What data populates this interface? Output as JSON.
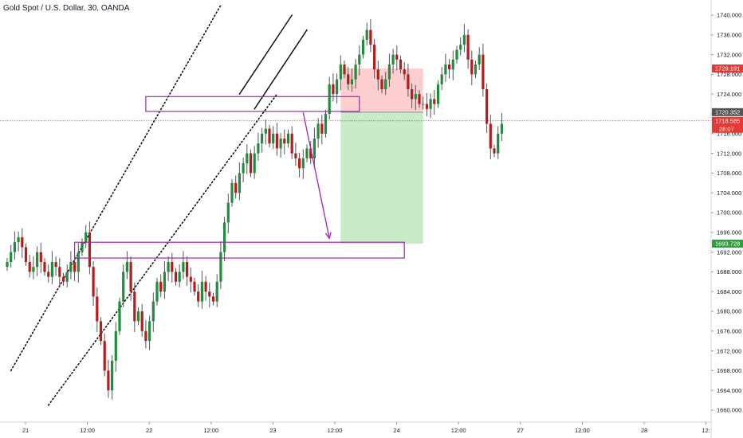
{
  "title": "Gold Spot / U.S. Dollar, 30, OANDA",
  "colors": {
    "up": "#26a69a",
    "down": "#ef5350",
    "bull_body": "#1e8e3e",
    "bear_body": "#b71c1c",
    "wick": "#555555",
    "purple": "#9c27b0",
    "target_fill": "#c8ebc8",
    "stop_fill": "#fdcfcf",
    "price_line": "#e53935",
    "axis_border": "#d1d4dc"
  },
  "price_tags": {
    "stop": "1729.191",
    "entry": "1720.352",
    "current": "1718.585",
    "countdown": "28:07",
    "target": "1693.728"
  },
  "chart_data": {
    "type": "candlestick",
    "symbol": "Gold Spot / U.S. Dollar",
    "timeframe": "30",
    "source": "OANDA",
    "x_ticks": [
      "21",
      "12:00",
      "22",
      "12:00",
      "23",
      "12:00",
      "24",
      "12:00",
      "27",
      "12:00",
      "28",
      "12:"
    ],
    "y_ticks": [
      "1740.000",
      "1736.000",
      "1732.000",
      "1728.000",
      "1724.000",
      "1720.000",
      "1716.000",
      "1712.000",
      "1708.000",
      "1704.000",
      "1700.000",
      "1696.000",
      "1692.000",
      "1688.000",
      "1684.000",
      "1680.000",
      "1676.000",
      "1672.000",
      "1668.000",
      "1664.000",
      "1660.000"
    ],
    "ylim": [
      1658,
      1742
    ],
    "current_price": 1718.585,
    "candles_close": [
      1690,
      1692,
      1694,
      1695,
      1693,
      1690,
      1688,
      1689,
      1692,
      1690,
      1688,
      1687,
      1690,
      1689,
      1687,
      1686,
      1688,
      1690,
      1688,
      1692,
      1694,
      1696,
      1689,
      1683,
      1678,
      1674,
      1668,
      1664,
      1670,
      1676,
      1682,
      1688,
      1690,
      1684,
      1678,
      1680,
      1676,
      1674,
      1678,
      1682,
      1686,
      1684,
      1688,
      1690,
      1688,
      1686,
      1688,
      1690,
      1687,
      1686,
      1684,
      1682,
      1686,
      1684,
      1683,
      1682,
      1686,
      1692,
      1698,
      1702,
      1706,
      1704,
      1708,
      1710,
      1712,
      1708,
      1712,
      1714,
      1716,
      1717,
      1714,
      1716,
      1713,
      1715,
      1714,
      1716,
      1712,
      1711,
      1709,
      1711,
      1713,
      1711,
      1715,
      1718,
      1716,
      1720,
      1726,
      1724,
      1727,
      1730,
      1728,
      1726,
      1727,
      1730,
      1732,
      1735,
      1737,
      1734,
      1729,
      1727,
      1725,
      1727,
      1730,
      1732,
      1731,
      1729,
      1728,
      1725,
      1723,
      1724,
      1722,
      1722,
      1721,
      1723,
      1722,
      1726,
      1728,
      1730,
      1729,
      1731,
      1733,
      1734,
      1736,
      1731,
      1728,
      1730,
      1732,
      1725,
      1718,
      1713,
      1712,
      1716,
      1718
    ],
    "channels": [
      {
        "from": [
          1,
          1668
        ],
        "to": [
          57,
          1742
        ]
      },
      {
        "from": [
          11,
          1661
        ],
        "to": [
          72,
          1724
        ]
      },
      {
        "from": [
          62,
          1724
        ],
        "to": [
          76,
          1740
        ]
      },
      {
        "from": [
          66,
          1721
        ],
        "to": [
          80,
          1737
        ]
      }
    ],
    "zones": [
      {
        "x_start": 37,
        "x_end": 94,
        "top": 1723.5,
        "bottom": 1720.5
      },
      {
        "x_start": 18,
        "x_end": 106,
        "top": 1694.0,
        "bottom": 1690.8
      }
    ],
    "position": {
      "type": "short",
      "x_start": 89,
      "x_end": 111,
      "stop": 1729.191,
      "entry": 1720.352,
      "target": 1693.728
    },
    "arrow": {
      "from": [
        79,
        1720.3
      ],
      "to": [
        86,
        1694.8
      ]
    },
    "grid": false
  }
}
